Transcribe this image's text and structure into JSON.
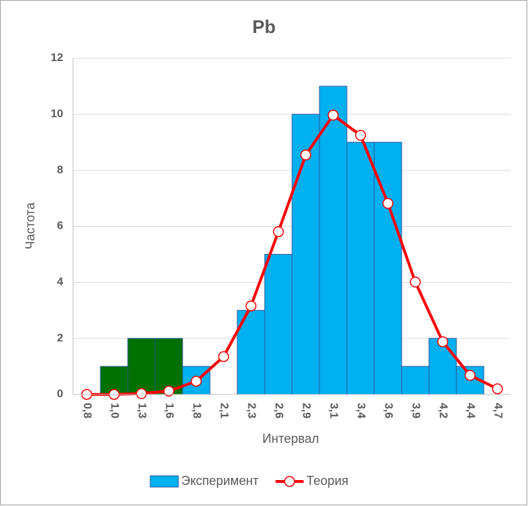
{
  "chart_data": {
    "type": "bar",
    "title": "Pb",
    "x_label": "Интервал",
    "y_label": "Частота",
    "categories": [
      "0,8",
      "1,0",
      "1,3",
      "1,6",
      "1,8",
      "2,1",
      "2,3",
      "2,6",
      "2,9",
      "3,1",
      "3,4",
      "3,6",
      "3,9",
      "4,2",
      "4,4",
      "4,7"
    ],
    "series": [
      {
        "name": "Эксперимент",
        "type": "bar",
        "color": "#00b0f0",
        "bar_colors": [
          "#00b0f0",
          "#007000",
          "#007000",
          "#007000",
          "#00b0f0",
          "#00b0f0",
          "#00b0f0",
          "#00b0f0",
          "#00b0f0",
          "#00b0f0",
          "#00b0f0",
          "#00b0f0",
          "#00b0f0",
          "#00b0f0",
          "#00b0f0",
          "#00b0f0"
        ],
        "values": [
          0,
          1,
          2,
          2,
          1,
          0,
          3,
          5,
          10,
          11,
          9,
          9,
          1,
          2,
          1,
          0
        ]
      },
      {
        "name": "Теория",
        "type": "line",
        "color": "#ff0000",
        "values": [
          0,
          0,
          0.03,
          0.12,
          0.47,
          1.35,
          3.16,
          5.81,
          8.55,
          9.97,
          9.25,
          6.82,
          4.01,
          1.88,
          0.68,
          0.2
        ]
      }
    ],
    "ylim": [
      0,
      12
    ],
    "yticks": [
      0,
      2,
      4,
      6,
      8,
      10,
      12
    ],
    "grid": true,
    "legend": "bottom"
  }
}
